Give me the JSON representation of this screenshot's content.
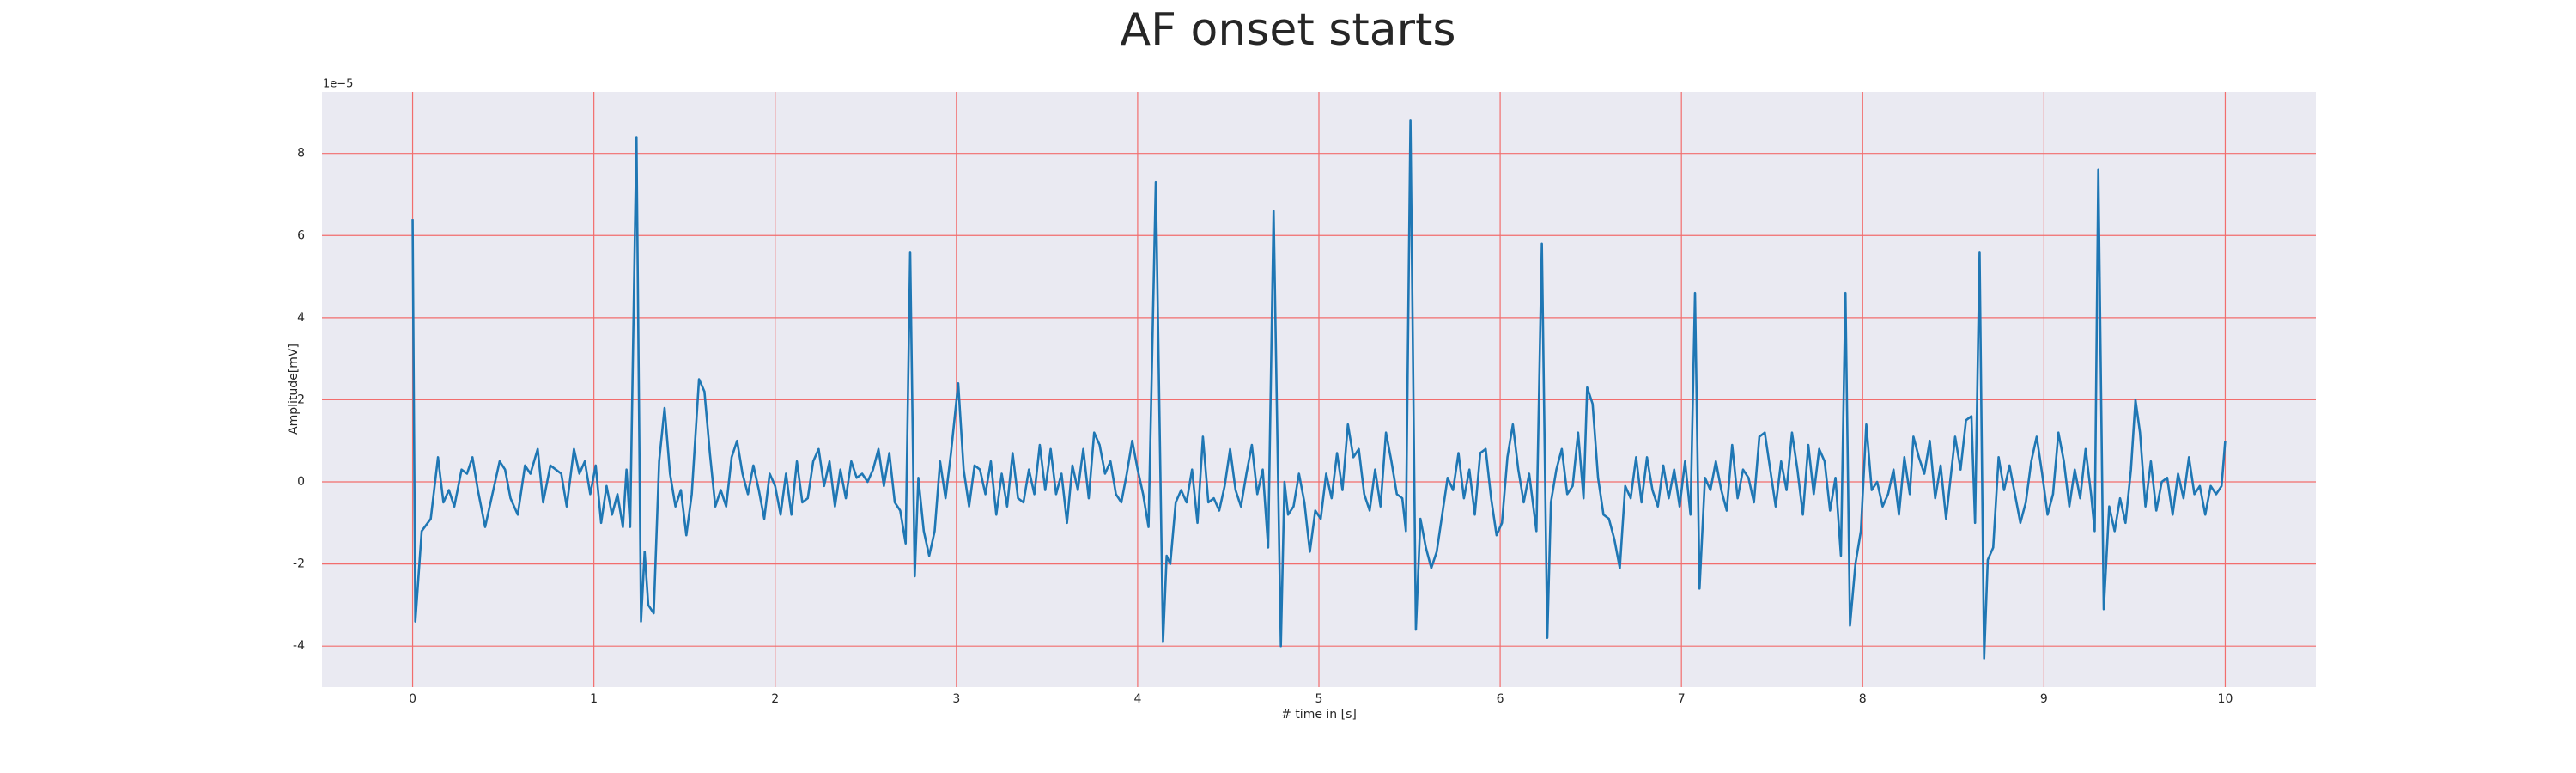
{
  "chart_data": {
    "type": "line",
    "title": "AF onset starts",
    "xlabel": "# time in [s]",
    "ylabel": "Amplitude[mV]",
    "y_offset_label": "1e−5",
    "xlim": [
      -0.5,
      10.5
    ],
    "ylim": [
      -5,
      9.5
    ],
    "xticks": [
      0,
      1,
      2,
      3,
      4,
      5,
      6,
      7,
      8,
      9,
      10
    ],
    "yticks": [
      -4,
      -2,
      0,
      2,
      4,
      6,
      8
    ],
    "grid": true,
    "grid_color": "#f26d6d",
    "background": "#eaeaf2",
    "x": [
      0,
      0.015,
      0.05,
      0.1,
      0.14,
      0.17,
      0.2,
      0.23,
      0.27,
      0.3,
      0.33,
      0.36,
      0.4,
      0.44,
      0.48,
      0.51,
      0.54,
      0.58,
      0.62,
      0.65,
      0.69,
      0.72,
      0.76,
      0.79,
      0.82,
      0.85,
      0.89,
      0.92,
      0.95,
      0.98,
      1.01,
      1.04,
      1.07,
      1.1,
      1.13,
      1.16,
      1.18,
      1.2,
      1.235,
      1.26,
      1.28,
      1.3,
      1.33,
      1.36,
      1.39,
      1.42,
      1.45,
      1.48,
      1.51,
      1.54,
      1.58,
      1.61,
      1.64,
      1.67,
      1.7,
      1.73,
      1.76,
      1.79,
      1.82,
      1.85,
      1.88,
      1.91,
      1.94,
      1.97,
      2.0,
      2.03,
      2.06,
      2.09,
      2.12,
      2.15,
      2.18,
      2.21,
      2.24,
      2.27,
      2.3,
      2.33,
      2.36,
      2.39,
      2.42,
      2.45,
      2.48,
      2.51,
      2.54,
      2.57,
      2.6,
      2.63,
      2.66,
      2.69,
      2.72,
      2.745,
      2.77,
      2.79,
      2.82,
      2.85,
      2.88,
      2.91,
      2.94,
      2.97,
      3.01,
      3.04,
      3.07,
      3.1,
      3.13,
      3.16,
      3.19,
      3.22,
      3.25,
      3.28,
      3.31,
      3.34,
      3.37,
      3.4,
      3.43,
      3.46,
      3.49,
      3.52,
      3.55,
      3.58,
      3.61,
      3.64,
      3.67,
      3.7,
      3.73,
      3.76,
      3.79,
      3.82,
      3.85,
      3.88,
      3.91,
      3.94,
      3.97,
      4.0,
      4.03,
      4.06,
      4.1,
      4.14,
      4.16,
      4.18,
      4.21,
      4.24,
      4.27,
      4.3,
      4.33,
      4.36,
      4.39,
      4.42,
      4.45,
      4.48,
      4.51,
      4.54,
      4.57,
      4.6,
      4.63,
      4.66,
      4.69,
      4.72,
      4.75,
      4.79,
      4.81,
      4.83,
      4.86,
      4.89,
      4.92,
      4.95,
      4.98,
      5.01,
      5.04,
      5.07,
      5.1,
      5.13,
      5.16,
      5.19,
      5.22,
      5.25,
      5.28,
      5.31,
      5.34,
      5.37,
      5.4,
      5.43,
      5.46,
      5.48,
      5.505,
      5.535,
      5.56,
      5.59,
      5.62,
      5.65,
      5.68,
      5.71,
      5.74,
      5.77,
      5.8,
      5.83,
      5.86,
      5.89,
      5.92,
      5.95,
      5.98,
      6.01,
      6.04,
      6.07,
      6.1,
      6.13,
      6.16,
      6.2,
      6.23,
      6.26,
      6.28,
      6.31,
      6.34,
      6.37,
      6.4,
      6.43,
      6.46,
      6.48,
      6.51,
      6.54,
      6.57,
      6.6,
      6.63,
      6.66,
      6.69,
      6.72,
      6.75,
      6.78,
      6.81,
      6.84,
      6.87,
      6.9,
      6.93,
      6.96,
      6.99,
      7.02,
      7.05,
      7.075,
      7.1,
      7.13,
      7.16,
      7.19,
      7.22,
      7.25,
      7.28,
      7.31,
      7.34,
      7.37,
      7.4,
      7.43,
      7.46,
      7.49,
      7.52,
      7.55,
      7.58,
      7.61,
      7.64,
      7.67,
      7.7,
      7.73,
      7.76,
      7.79,
      7.82,
      7.85,
      7.88,
      7.905,
      7.93,
      7.96,
      7.99,
      8.02,
      8.05,
      8.08,
      8.11,
      8.14,
      8.17,
      8.2,
      8.23,
      8.26,
      8.28,
      8.31,
      8.34,
      8.37,
      8.4,
      8.43,
      8.46,
      8.49,
      8.51,
      8.54,
      8.57,
      8.6,
      8.62,
      8.645,
      8.67,
      8.69,
      8.72,
      8.75,
      8.78,
      8.81,
      8.84,
      8.87,
      8.9,
      8.93,
      8.96,
      8.99,
      9.02,
      9.05,
      9.08,
      9.11,
      9.14,
      9.17,
      9.2,
      9.23,
      9.26,
      9.28,
      9.3,
      9.33,
      9.36,
      9.39,
      9.42,
      9.45,
      9.48,
      9.505,
      9.53,
      9.56,
      9.59,
      9.62,
      9.65,
      9.68,
      9.71,
      9.74,
      9.77,
      9.8,
      9.83,
      9.86,
      9.89,
      9.92,
      9.95,
      9.98,
      10
    ],
    "series": [
      {
        "color": "#1f77b4",
        "values": [
          6.4,
          -3.4,
          -1.2,
          -0.9,
          0.6,
          -0.5,
          -0.2,
          -0.6,
          0.3,
          0.2,
          0.6,
          -0.2,
          -1.1,
          -0.3,
          0.5,
          0.3,
          -0.4,
          -0.8,
          0.4,
          0.2,
          0.8,
          -0.5,
          0.4,
          0.3,
          0.2,
          -0.6,
          0.8,
          0.2,
          0.5,
          -0.3,
          0.4,
          -1.0,
          -0.1,
          -0.8,
          -0.3,
          -1.1,
          0.3,
          -1.1,
          8.4,
          -3.4,
          -1.7,
          -3.0,
          -3.2,
          0.5,
          1.8,
          0.2,
          -0.6,
          -0.2,
          -1.3,
          -0.3,
          2.5,
          2.2,
          0.7,
          -0.6,
          -0.2,
          -0.6,
          0.6,
          1.0,
          0.2,
          -0.3,
          0.4,
          -0.2,
          -0.9,
          0.2,
          -0.1,
          -0.8,
          0.2,
          -0.8,
          0.5,
          -0.5,
          -0.4,
          0.5,
          0.8,
          -0.1,
          0.5,
          -0.6,
          0.3,
          -0.4,
          0.5,
          0.1,
          0.2,
          0,
          0.3,
          0.8,
          -0.1,
          0.7,
          -0.5,
          -0.7,
          -1.5,
          5.6,
          -2.3,
          0.1,
          -1.2,
          -1.8,
          -1.2,
          0.5,
          -0.4,
          0.7,
          2.4,
          0.3,
          -0.6,
          0.4,
          0.3,
          -0.3,
          0.5,
          -0.8,
          0.2,
          -0.6,
          0.7,
          -0.4,
          -0.5,
          0.3,
          -0.3,
          0.9,
          -0.2,
          0.8,
          -0.3,
          0.2,
          -1.0,
          0.4,
          -0.2,
          0.8,
          -0.4,
          1.2,
          0.9,
          0.2,
          0.5,
          -0.3,
          -0.5,
          0.2,
          1.0,
          0.3,
          -0.3,
          -1.1,
          7.3,
          -3.9,
          -1.8,
          -2.0,
          -0.5,
          -0.2,
          -0.5,
          0.3,
          -1.0,
          1.1,
          -0.5,
          -0.4,
          -0.7,
          -0.1,
          0.8,
          -0.2,
          -0.6,
          0.2,
          0.9,
          -0.3,
          0.3,
          -1.6,
          6.6,
          -4.0,
          0,
          -0.8,
          -0.6,
          0.2,
          -0.5,
          -1.7,
          -0.7,
          -0.9,
          0.2,
          -0.4,
          0.7,
          -0.2,
          1.4,
          0.6,
          0.8,
          -0.3,
          -0.7,
          0.3,
          -0.6,
          1.2,
          0.5,
          -0.3,
          -0.4,
          -1.2,
          8.8,
          -3.6,
          -0.9,
          -1.6,
          -2.1,
          -1.7,
          -0.8,
          0.1,
          -0.2,
          0.7,
          -0.4,
          0.3,
          -0.8,
          0.7,
          0.8,
          -0.4,
          -1.3,
          -1.0,
          0.6,
          1.4,
          0.3,
          -0.5,
          0.2,
          -1.2,
          5.8,
          -3.8,
          -0.5,
          0.3,
          0.8,
          -0.3,
          -0.1,
          1.2,
          -0.4,
          2.3,
          1.9,
          0.1,
          -0.8,
          -0.9,
          -1.4,
          -2.1,
          -0.1,
          -0.4,
          0.6,
          -0.5,
          0.6,
          -0.2,
          -0.6,
          0.4,
          -0.4,
          0.3,
          -0.6,
          0.5,
          -0.8,
          4.6,
          -2.6,
          0.1,
          -0.2,
          0.5,
          -0.2,
          -0.7,
          0.9,
          -0.4,
          0.3,
          0.1,
          -0.5,
          1.1,
          1.2,
          0.3,
          -0.6,
          0.5,
          -0.2,
          1.2,
          0.3,
          -0.8,
          0.9,
          -0.3,
          0.8,
          0.5,
          -0.7,
          0.1,
          -1.8,
          4.6,
          -3.5,
          -2.0,
          -1.2,
          1.4,
          -0.2,
          0,
          -0.6,
          -0.3,
          0.3,
          -0.8,
          0.6,
          -0.3,
          1.1,
          0.6,
          0.2,
          1.0,
          -0.4,
          0.4,
          -0.9,
          0.3,
          1.1,
          0.3,
          1.5,
          1.6,
          -1.0,
          5.6,
          -4.3,
          -1.9,
          -1.6,
          0.6,
          -0.2,
          0.4,
          -0.3,
          -1.0,
          -0.5,
          0.5,
          1.1,
          0.2,
          -0.8,
          -0.3,
          1.2,
          0.5,
          -0.6,
          0.3,
          -0.4,
          0.8,
          -0.3,
          -1.2,
          7.6,
          -3.1,
          -0.6,
          -1.2,
          -0.4,
          -1.0,
          0.3,
          2.0,
          1.2,
          -0.6,
          0.5,
          -0.7,
          0,
          0.1,
          -0.8,
          0.2,
          -0.4,
          0.6,
          -0.3,
          -0.1,
          -0.8,
          -0.1,
          -0.3,
          -0.1,
          1.0
        ]
      }
    ]
  }
}
